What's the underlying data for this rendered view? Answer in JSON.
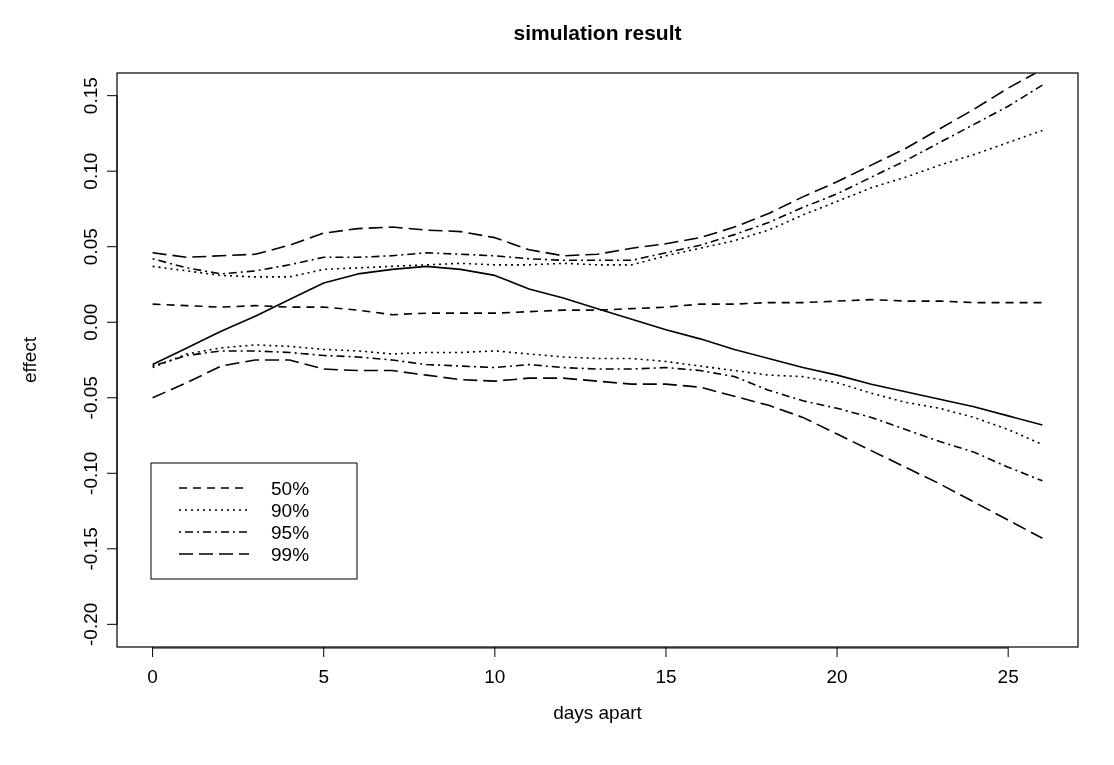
{
  "chart_data": {
    "type": "line",
    "title": "simulation result",
    "xlabel": "days apart",
    "ylabel": "effect",
    "x": [
      0,
      1,
      2,
      3,
      4,
      5,
      6,
      7,
      8,
      9,
      10,
      11,
      12,
      13,
      14,
      15,
      16,
      17,
      18,
      19,
      20,
      21,
      22,
      23,
      24,
      25,
      26
    ],
    "xlim": [
      -1.04,
      27.04
    ],
    "xticks": [
      0,
      5,
      10,
      15,
      20,
      25
    ],
    "ylim": [
      -0.215,
      0.165
    ],
    "yticks": [
      {
        "value": -0.2,
        "label": "-0.20"
      },
      {
        "value": -0.15,
        "label": "-0.15"
      },
      {
        "value": -0.1,
        "label": "-0.10"
      },
      {
        "value": -0.05,
        "label": "-0.05"
      },
      {
        "value": 0,
        "label": "0.00"
      },
      {
        "value": 0.05,
        "label": "0.05"
      },
      {
        "value": 0.1,
        "label": "0.10"
      },
      {
        "value": 0.15,
        "label": "0.15"
      }
    ],
    "grid": false,
    "legend": "bottom left",
    "marker": "none",
    "series": [
      {
        "color": "#000000",
        "line_style": "solid",
        "values": [
          -0.028,
          -0.017,
          -0.006,
          0.004,
          0.015,
          0.026,
          0.032,
          0.035,
          0.037,
          0.035,
          0.031,
          0.022,
          0.016,
          0.009,
          0.002,
          -0.005,
          -0.011,
          -0.018,
          -0.024,
          -0.03,
          -0.035,
          -0.041,
          -0.046,
          -0.051,
          -0.056,
          -0.062,
          -0.068
        ]
      },
      {
        "name": "50%",
        "color": "#000000",
        "line_style": "dashed",
        "values": [
          0.012,
          0.011,
          0.01,
          0.011,
          0.01,
          0.01,
          0.008,
          0.005,
          0.006,
          0.006,
          0.006,
          0.007,
          0.008,
          0.008,
          0.009,
          0.01,
          0.012,
          0.012,
          0.013,
          0.013,
          0.014,
          0.015,
          0.014,
          0.014,
          0.013,
          0.013,
          0.013
        ]
      },
      {
        "name": "90%",
        "color": "#000000",
        "line_style": "dotted",
        "values": [
          0.037,
          0.034,
          0.031,
          0.03,
          0.03,
          0.035,
          0.036,
          0.037,
          0.038,
          0.039,
          0.038,
          0.038,
          0.039,
          0.038,
          0.038,
          0.044,
          0.049,
          0.054,
          0.061,
          0.071,
          0.08,
          0.089,
          0.096,
          0.104,
          0.111,
          0.119,
          0.127
        ]
      },
      {
        "color": "#000000",
        "line_style": "dotted",
        "values": [
          -0.03,
          -0.021,
          -0.017,
          -0.015,
          -0.016,
          -0.018,
          -0.019,
          -0.021,
          -0.02,
          -0.02,
          -0.019,
          -0.021,
          -0.023,
          -0.024,
          -0.024,
          -0.026,
          -0.029,
          -0.032,
          -0.035,
          -0.036,
          -0.04,
          -0.047,
          -0.053,
          -0.057,
          -0.063,
          -0.071,
          -0.081
        ]
      },
      {
        "name": "95%",
        "color": "#000000",
        "line_style": "dashdot",
        "values": [
          0.042,
          0.036,
          0.032,
          0.034,
          0.038,
          0.043,
          0.043,
          0.044,
          0.046,
          0.045,
          0.044,
          0.042,
          0.041,
          0.041,
          0.041,
          0.046,
          0.051,
          0.058,
          0.066,
          0.076,
          0.085,
          0.096,
          0.107,
          0.119,
          0.131,
          0.143,
          0.157
        ]
      },
      {
        "color": "#000000",
        "line_style": "dashdot",
        "values": [
          -0.029,
          -0.022,
          -0.019,
          -0.019,
          -0.02,
          -0.022,
          -0.023,
          -0.025,
          -0.028,
          -0.029,
          -0.03,
          -0.028,
          -0.03,
          -0.031,
          -0.031,
          -0.03,
          -0.032,
          -0.036,
          -0.045,
          -0.052,
          -0.057,
          -0.063,
          -0.071,
          -0.079,
          -0.086,
          -0.096,
          -0.105
        ]
      },
      {
        "name": "99%",
        "color": "#000000",
        "line_style": "longdash",
        "x": [
          0,
          1,
          2,
          3,
          4,
          5,
          6,
          7,
          8,
          9,
          10,
          11,
          12,
          13,
          14,
          15,
          16,
          17,
          18,
          19,
          20,
          21,
          22,
          23,
          24,
          25,
          25.8
        ],
        "values": [
          0.046,
          0.043,
          0.044,
          0.045,
          0.051,
          0.059,
          0.062,
          0.063,
          0.061,
          0.06,
          0.056,
          0.048,
          0.044,
          0.045,
          0.049,
          0.052,
          0.056,
          0.063,
          0.072,
          0.083,
          0.093,
          0.104,
          0.115,
          0.128,
          0.141,
          0.155,
          0.165
        ]
      },
      {
        "color": "#000000",
        "line_style": "longdash",
        "values": [
          -0.05,
          -0.04,
          -0.029,
          -0.025,
          -0.025,
          -0.031,
          -0.032,
          -0.032,
          -0.035,
          -0.038,
          -0.039,
          -0.037,
          -0.037,
          -0.039,
          -0.041,
          -0.041,
          -0.043,
          -0.049,
          -0.055,
          -0.063,
          -0.074,
          -0.085,
          -0.096,
          -0.107,
          -0.119,
          -0.131,
          -0.143
        ]
      }
    ]
  }
}
